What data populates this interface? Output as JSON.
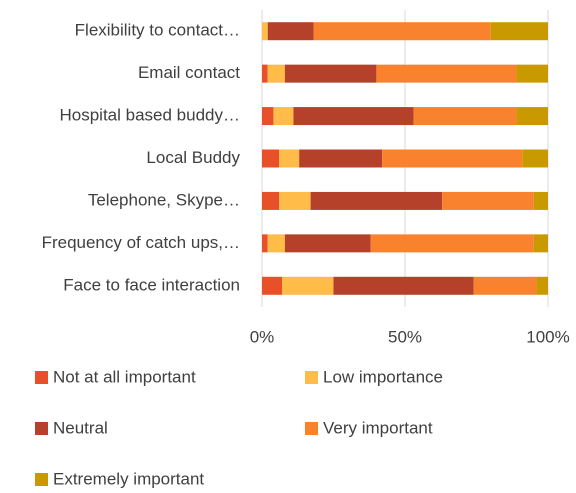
{
  "chart_data": {
    "type": "stacked_bar_horizontal",
    "categories": [
      "Flexibility to contact…",
      "Email contact",
      "Hospital based buddy…",
      "Local Buddy",
      "Telephone, Skype…",
      "Frequency of catch ups,…",
      "Face to face interaction"
    ],
    "series": [
      {
        "name": "Not at all important",
        "color": "#e8502a",
        "values": [
          0,
          2,
          4,
          6,
          6,
          2,
          7
        ]
      },
      {
        "name": "Low importance",
        "color": "#ffbc48",
        "values": [
          2,
          6,
          7,
          7,
          11,
          6,
          18
        ]
      },
      {
        "name": "Neutral",
        "color": "#b5412a",
        "values": [
          16,
          32,
          42,
          29,
          46,
          30,
          49
        ]
      },
      {
        "name": "Very important",
        "color": "#f8822e",
        "values": [
          62,
          49,
          36,
          49,
          32,
          57,
          22
        ]
      },
      {
        "name": "Extremely important",
        "color": "#c89a00",
        "values": [
          20,
          11,
          11,
          9,
          5,
          5,
          4
        ]
      }
    ],
    "xlim": [
      0,
      100
    ],
    "xticks": [
      {
        "value": 0,
        "label": "0%"
      },
      {
        "value": 50,
        "label": "50%"
      },
      {
        "value": 100,
        "label": "100%"
      }
    ],
    "grid": true,
    "legend": "bottom"
  }
}
